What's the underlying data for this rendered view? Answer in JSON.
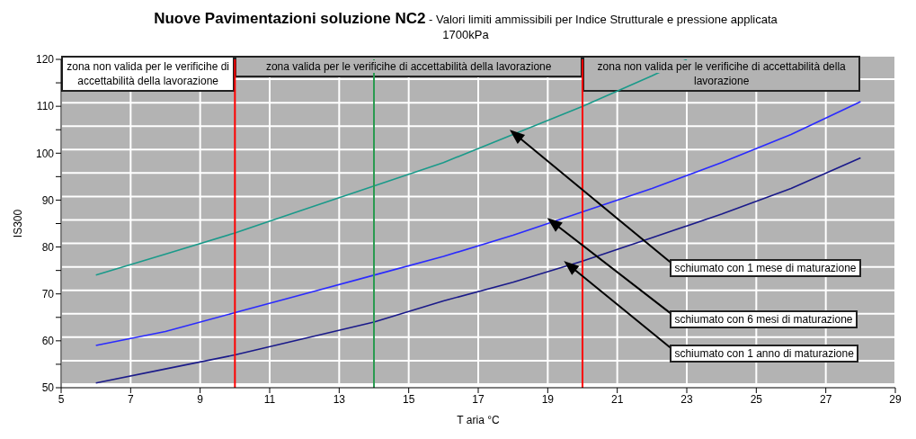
{
  "chart_data": {
    "type": "line",
    "title": "Nuove Pavimentazioni soluzione NC2",
    "subtitle": "- Valori limiti ammissibili per Indice Strutturale e pressione applicata 1700kPa",
    "xlabel": "T aria °C",
    "ylabel": "IS300",
    "xlim": [
      5,
      29
    ],
    "xticks": [
      5,
      7,
      9,
      11,
      13,
      15,
      17,
      19,
      21,
      23,
      25,
      27,
      29
    ],
    "ylim": [
      50,
      120
    ],
    "yticks": [
      50,
      {
        "value": 55,
        "label": null
      },
      60,
      {
        "value": 65,
        "label": null
      },
      70,
      {
        "value": 75,
        "label": null
      },
      80,
      {
        "value": 85,
        "label": null
      },
      90,
      {
        "value": 95,
        "label": null
      },
      100,
      {
        "value": 105,
        "label": null
      },
      110,
      {
        "value": 115,
        "label": null
      },
      120
    ],
    "grid": true,
    "marker": "none",
    "line_style": "solid",
    "series": [
      {
        "color": "#1a9a8a",
        "x": [
          6,
          8,
          10,
          12,
          14,
          16,
          18,
          20,
          22,
          23
        ],
        "values": [
          74,
          78.5,
          83,
          88,
          93,
          98,
          104,
          110,
          116.5,
          120
        ]
      },
      {
        "color": "#2a2aff",
        "x": [
          6,
          8,
          10,
          12,
          14,
          16,
          18,
          19,
          20,
          22,
          24,
          26,
          28
        ],
        "values": [
          59,
          62,
          66,
          70,
          74,
          78,
          82.5,
          85,
          87.5,
          92.5,
          98,
          104,
          111
        ]
      },
      {
        "color": "#1a1a8a",
        "x": [
          6,
          8,
          10,
          12,
          14,
          16,
          18,
          20,
          22,
          24,
          26,
          28
        ],
        "values": [
          51,
          54,
          57,
          60.5,
          64,
          68.5,
          72.5,
          77,
          82,
          87,
          92.5,
          99
        ]
      }
    ],
    "ref_lines": [
      {
        "axis": "x",
        "value": 10,
        "color": "#ff0000"
      },
      {
        "axis": "x",
        "value": 14,
        "color": "#2a9a50"
      },
      {
        "axis": "x",
        "value": 20,
        "color": "#ff0000"
      }
    ],
    "bands": [
      {
        "axis": "x",
        "from": 5,
        "to": 10,
        "label": "zona non valida per le verificihe di accettabilità della lavorazione",
        "color": "#ffffff"
      },
      {
        "axis": "x",
        "from": 10,
        "to": 20,
        "label": "zona valida per le verificihe di accettabilità della lavorazione",
        "color": "#b3b3b3"
      },
      {
        "axis": "x",
        "from": 20,
        "to": 28,
        "label": "zona non valida per le verificihe di accettabilità della lavorazione",
        "color": "#b3b3b3"
      }
    ],
    "annotations": [
      "schiumato con 1 mese di maturazione",
      "schiumato con 6 mesi di maturazione",
      "schiumato con 1 anno di maturazione"
    ]
  }
}
